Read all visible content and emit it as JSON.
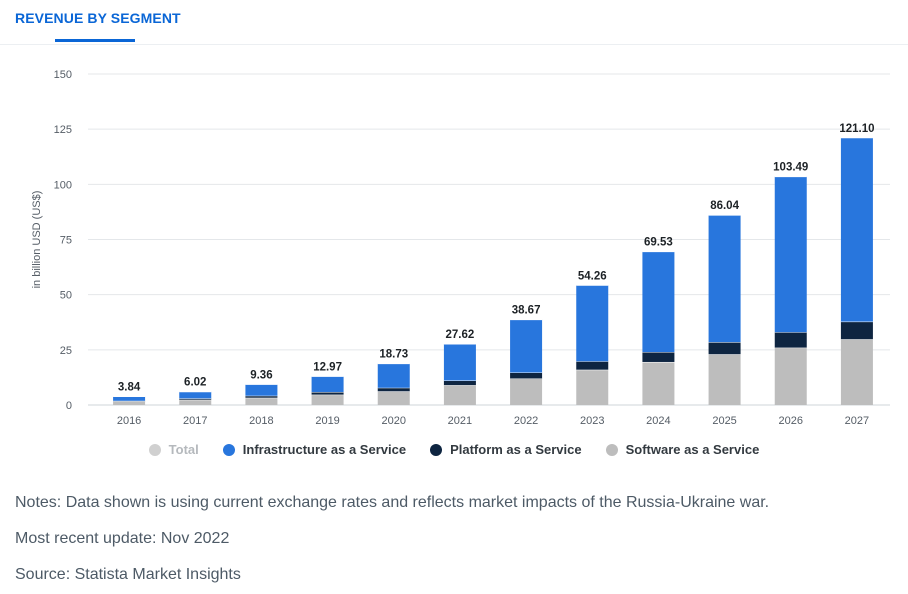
{
  "header": {
    "title": "REVENUE BY SEGMENT"
  },
  "chart_data": {
    "type": "bar",
    "stacked": true,
    "ylabel": "in billion USD (US$)",
    "ylim": [
      0,
      150
    ],
    "yticks": [
      0,
      25,
      50,
      75,
      100,
      125,
      150
    ],
    "categories": [
      "2016",
      "2017",
      "2018",
      "2019",
      "2020",
      "2021",
      "2022",
      "2023",
      "2024",
      "2025",
      "2026",
      "2027"
    ],
    "totals": [
      3.84,
      6.02,
      9.36,
      12.97,
      18.73,
      27.62,
      38.67,
      54.26,
      69.53,
      86.04,
      103.49,
      121.1
    ],
    "total_labels": [
      "3.84",
      "6.02",
      "9.36",
      "12.97",
      "18.73",
      "27.62",
      "38.67",
      "54.26",
      "69.53",
      "86.04",
      "103.49",
      "121.10"
    ],
    "series": [
      {
        "name": "Software as a Service",
        "color": "#bdbdbd",
        "values": [
          1.6,
          2.4,
          3.3,
          4.7,
          6.2,
          9.0,
          12.0,
          16.0,
          19.5,
          23.0,
          26.0,
          29.8
        ]
      },
      {
        "name": "Platform as a Service",
        "color": "#0e2541",
        "values": [
          0.3,
          0.6,
          0.9,
          1.2,
          1.6,
          2.1,
          2.7,
          3.8,
          4.5,
          5.5,
          7.0,
          8.0
        ]
      },
      {
        "name": "Infrastructure as a Service",
        "color": "#2876dd",
        "values": [
          1.94,
          3.02,
          5.16,
          7.07,
          10.93,
          16.52,
          23.97,
          34.46,
          45.53,
          57.54,
          70.49,
          83.3
        ]
      }
    ],
    "legend": [
      {
        "name": "Total",
        "color": "#d0d0d0",
        "muted": true
      },
      {
        "name": "Infrastructure as a Service",
        "color": "#2876dd",
        "muted": false
      },
      {
        "name": "Platform as a Service",
        "color": "#0e2541",
        "muted": false
      },
      {
        "name": "Software as a Service",
        "color": "#bdbdbd",
        "muted": false
      }
    ]
  },
  "notes": {
    "note": "Notes: Data shown is using current exchange rates and reflects market impacts of the Russia-Ukraine war.",
    "update": "Most recent update: Nov 2022",
    "source": "Source: Statista Market Insights"
  }
}
